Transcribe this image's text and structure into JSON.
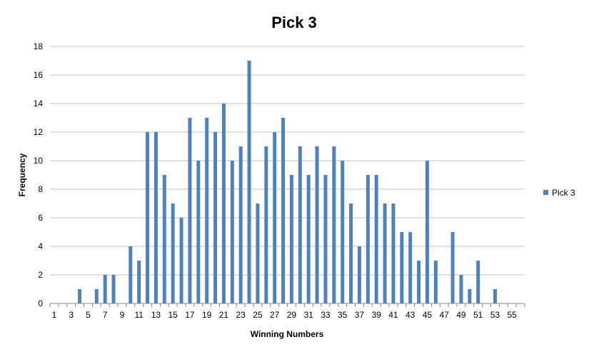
{
  "chart_data": {
    "type": "bar",
    "title": "Pick 3",
    "xlabel": "Winning Numbers",
    "ylabel": "Frequency",
    "ylim": [
      0,
      18
    ],
    "y_ticks": [
      0,
      2,
      4,
      6,
      8,
      10,
      12,
      14,
      16,
      18
    ],
    "x_tick_labels": [
      "1",
      "3",
      "5",
      "7",
      "9",
      "11",
      "13",
      "15",
      "17",
      "19",
      "21",
      "23",
      "25",
      "27",
      "29",
      "31",
      "33",
      "35",
      "37",
      "39",
      "41",
      "43",
      "45",
      "47",
      "49",
      "51",
      "53",
      "55"
    ],
    "grid": true,
    "legend_position": "right",
    "bar_color": "#4F81BD",
    "categories": [
      1,
      2,
      3,
      4,
      5,
      6,
      7,
      8,
      9,
      10,
      11,
      12,
      13,
      14,
      15,
      16,
      17,
      18,
      19,
      20,
      21,
      22,
      23,
      24,
      25,
      26,
      27,
      28,
      29,
      30,
      31,
      32,
      33,
      34,
      35,
      36,
      37,
      38,
      39,
      40,
      41,
      42,
      43,
      44,
      45,
      46,
      47,
      48,
      49,
      50,
      51,
      52,
      53,
      54,
      55,
      56
    ],
    "series": [
      {
        "name": "Pick 3",
        "values": [
          0,
          0,
          0,
          1,
          0,
          1,
          2,
          2,
          0,
          4,
          3,
          12,
          12,
          9,
          7,
          6,
          13,
          10,
          13,
          12,
          14,
          10,
          11,
          17,
          7,
          11,
          12,
          13,
          9,
          11,
          9,
          11,
          9,
          11,
          10,
          7,
          4,
          9,
          9,
          7,
          7,
          5,
          5,
          3,
          10,
          3,
          0,
          5,
          2,
          1,
          3,
          0,
          1,
          0,
          0,
          0
        ]
      }
    ]
  }
}
